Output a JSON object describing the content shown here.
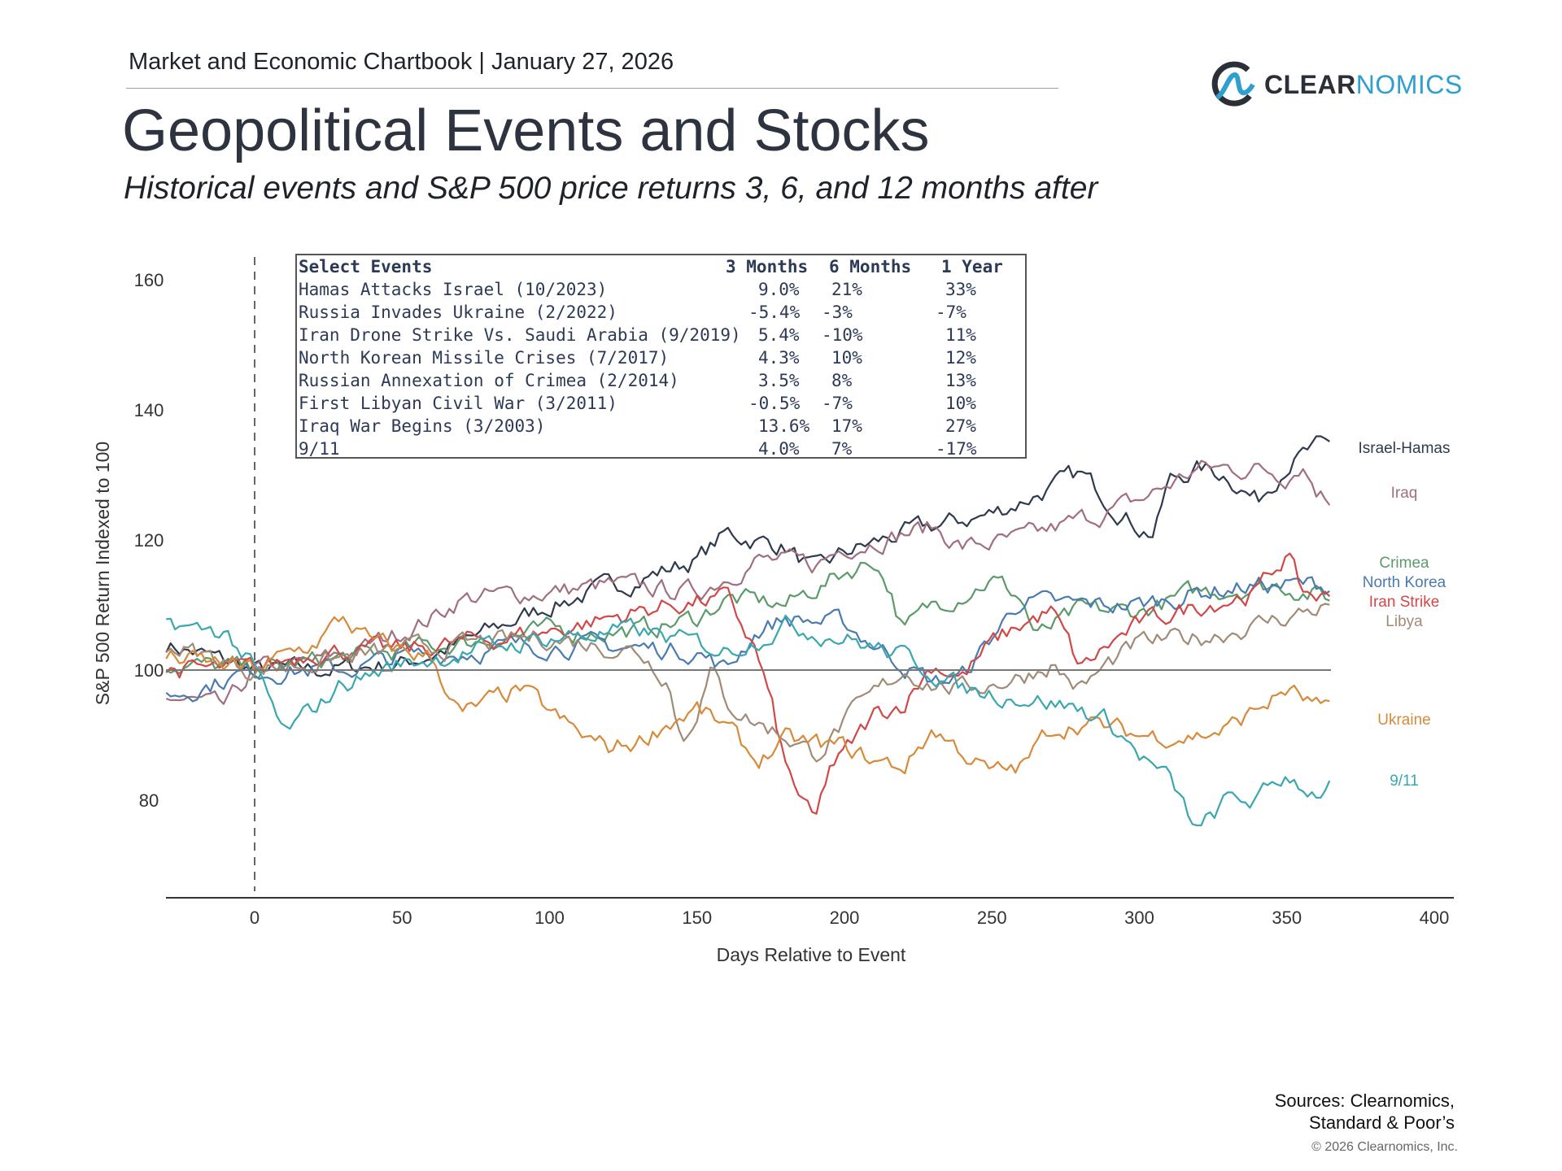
{
  "header": {
    "chartbook": "Market and Economic Chartbook | January 27, 2026",
    "title": "Geopolitical Events and Stocks",
    "subtitle": "Historical events and S&P 500 price returns 3, 6, and 12 months after"
  },
  "logo": {
    "part1": "CLEAR",
    "part2": "NOMICS",
    "colors": {
      "dark": "#2b3038",
      "accent": "#2f9fd0"
    }
  },
  "table": {
    "headers": [
      "Select Events",
      "3 Months",
      "6 Months",
      "1 Year"
    ],
    "rows": [
      [
        "Hamas Attacks Israel (10/2023)",
        "9.0%",
        "21%",
        "33%"
      ],
      [
        "Russia Invades Ukraine (2/2022)",
        "-5.4%",
        "-3%",
        "-7%"
      ],
      [
        "Iran Drone Strike Vs. Saudi Arabia (9/2019)",
        "5.4%",
        "-10%",
        "11%"
      ],
      [
        "North Korean Missile Crises (7/2017)",
        "4.3%",
        "10%",
        "12%"
      ],
      [
        "Russian Annexation of Crimea (2/2014)",
        "3.5%",
        "8%",
        "13%"
      ],
      [
        "First Libyan Civil War (3/2011)",
        "-0.5%",
        "-7%",
        "10%"
      ],
      [
        "Iraq War Begins (3/2003)",
        "13.6%",
        "17%",
        "27%"
      ],
      [
        "9/11",
        "4.0%",
        "7%",
        "-17%"
      ]
    ]
  },
  "chart_data": {
    "type": "line",
    "xlabel": "Days Relative to Event",
    "ylabel": "S&P 500 Return Indexed to 100",
    "xlim": [
      -30,
      400
    ],
    "ylim": [
      65,
      165
    ],
    "xticks": [
      0,
      50,
      100,
      150,
      200,
      250,
      300,
      350,
      400
    ],
    "yticks": [
      80,
      100,
      120,
      140,
      160
    ],
    "reference_line": 100,
    "event_day": 0,
    "series": [
      {
        "name": "Israel-Hamas",
        "color": "#2e3a4d",
        "x": [
          -30,
          0,
          20,
          50,
          70,
          100,
          130,
          150,
          160,
          180,
          190,
          200,
          220,
          250,
          270,
          280,
          290,
          300,
          305,
          310,
          320,
          330,
          340,
          350,
          360,
          365
        ],
        "y": [
          104,
          100,
          100,
          101,
          104,
          110,
          114,
          117,
          121,
          119,
          115,
          118,
          121,
          124,
          128,
          130,
          126,
          122,
          121,
          129,
          131,
          130,
          126,
          132,
          134,
          134
        ]
      },
      {
        "name": "Iraq",
        "color": "#a06f80",
        "x": [
          -30,
          -10,
          0,
          20,
          40,
          60,
          70,
          100,
          120,
          150,
          170,
          190,
          200,
          230,
          240,
          260,
          280,
          300,
          320,
          340,
          350,
          355,
          360,
          365
        ],
        "y": [
          96,
          94,
          100,
          101,
          104,
          108,
          111,
          112,
          113,
          112,
          117,
          116,
          119,
          122,
          119,
          120,
          123,
          126,
          131,
          131,
          130,
          132,
          128,
          126
        ]
      },
      {
        "name": "Crimea",
        "color": "#5b9a6b",
        "x": [
          -30,
          0,
          50,
          100,
          130,
          150,
          160,
          180,
          200,
          210,
          215,
          220,
          230,
          250,
          260,
          265,
          280,
          300,
          320,
          340,
          350,
          365
        ],
        "y": [
          101,
          100,
          103,
          106,
          106,
          108,
          111,
          110,
          115,
          117,
          113,
          106,
          110,
          114,
          111,
          105,
          109,
          109,
          112,
          113,
          113,
          111
        ]
      },
      {
        "name": "North Korea",
        "color": "#4a7bb0",
        "x": [
          -30,
          0,
          30,
          50,
          100,
          150,
          160,
          170,
          180,
          200,
          210,
          230,
          240,
          250,
          260,
          270,
          300,
          320,
          340,
          365
        ],
        "y": [
          96,
          100,
          100,
          102,
          104,
          103,
          100,
          106,
          108,
          107,
          104,
          98,
          99,
          105,
          111,
          110,
          110,
          112,
          113,
          113
        ]
      },
      {
        "name": "Iran Strike",
        "color": "#d04848",
        "x": [
          -30,
          0,
          20,
          50,
          100,
          120,
          140,
          160,
          170,
          175,
          180,
          190,
          195,
          200,
          210,
          220,
          230,
          240,
          250,
          260,
          270,
          275,
          280,
          290,
          300,
          320,
          340,
          350,
          355,
          365
        ],
        "y": [
          100,
          100,
          103,
          103,
          106,
          108,
          110,
          111,
          103,
          95,
          85,
          76,
          85,
          87,
          93,
          95,
          101,
          99,
          104,
          107,
          109,
          105,
          100,
          104,
          107,
          110,
          112,
          118,
          112,
          111
        ]
      },
      {
        "name": "Libya",
        "color": "#a08b77",
        "x": [
          -30,
          0,
          50,
          100,
          130,
          140,
          145,
          150,
          155,
          160,
          170,
          180,
          190,
          200,
          210,
          220,
          230,
          240,
          250,
          260,
          270,
          280,
          290,
          300,
          320,
          340,
          365
        ],
        "y": [
          104,
          100,
          103,
          105,
          103,
          99,
          89,
          94,
          100,
          95,
          92,
          90,
          87,
          92,
          96,
          100,
          98,
          97,
          98,
          99,
          101,
          97,
          101,
          104,
          105,
          107,
          110
        ]
      },
      {
        "name": "Ukraine",
        "color": "#d68a3a",
        "x": [
          -30,
          0,
          20,
          30,
          40,
          60,
          70,
          90,
          110,
          120,
          130,
          140,
          150,
          160,
          170,
          180,
          200,
          210,
          220,
          230,
          250,
          260,
          270,
          280,
          300,
          320,
          330,
          340,
          350,
          365
        ],
        "y": [
          102,
          100,
          104,
          108,
          104,
          102,
          93,
          97,
          90,
          88,
          89,
          92,
          94,
          91,
          86,
          89,
          88,
          86,
          85,
          91,
          84,
          85,
          91,
          92,
          90,
          90,
          91,
          94,
          97,
          93
        ]
      },
      {
        "name": "9/11",
        "color": "#3aa7b0",
        "x": [
          -30,
          -20,
          -10,
          0,
          10,
          20,
          30,
          50,
          100,
          130,
          140,
          160,
          180,
          200,
          220,
          230,
          240,
          260,
          280,
          290,
          300,
          310,
          320,
          330,
          340,
          350,
          360,
          365
        ],
        "y": [
          108,
          106,
          106,
          100,
          90,
          94,
          98,
          101,
          105,
          106,
          105,
          103,
          107,
          105,
          102,
          100,
          97,
          96,
          94,
          92,
          87,
          83,
          75,
          80,
          80,
          84,
          81,
          83
        ]
      }
    ]
  },
  "sources": {
    "line1": "Sources: Clearnomics,",
    "line2": "Standard & Poor’s",
    "copyright": "© 2026 Clearnomics, Inc."
  }
}
